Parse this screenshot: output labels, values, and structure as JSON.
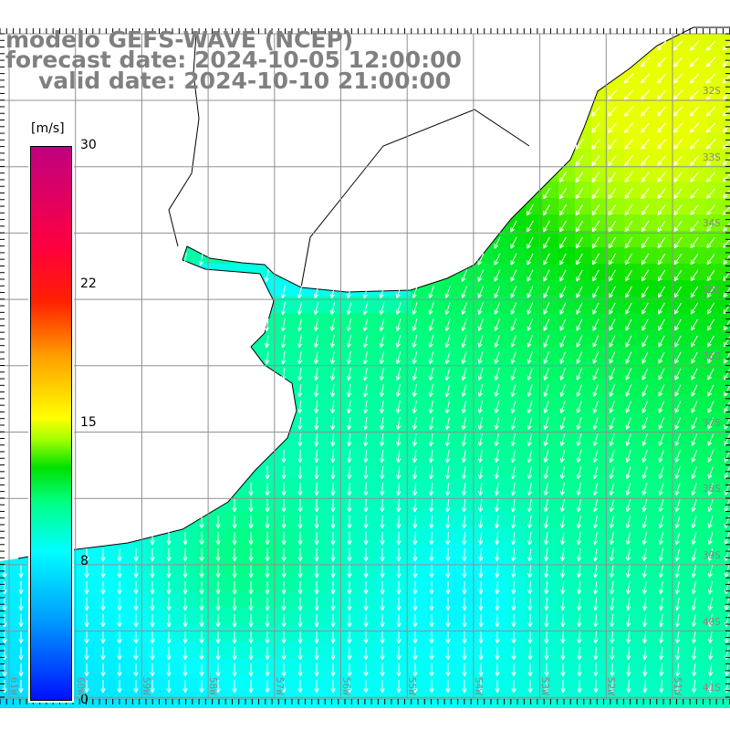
{
  "title": {
    "line1": "modelo GEFS-WAVE (NCEP)",
    "line2": "forecast date: 2024-10-05 12:00:00",
    "line3": "valid date: 2024-10-10 21:00:00"
  },
  "colorbar": {
    "unit": "[m/s]",
    "ticks": [
      "30",
      "22",
      "15",
      "8",
      "0"
    ]
  },
  "lat_labels": [
    "32S",
    "33S",
    "34S",
    "35S",
    "36S",
    "37S",
    "38S",
    "39S",
    "40S",
    "41S"
  ],
  "lon_labels": [
    "61W",
    "60W",
    "59W",
    "58W",
    "57W",
    "56W",
    "55W",
    "54W",
    "53W",
    "52W",
    "51W"
  ],
  "colors": {
    "land": "#ffffff",
    "grid": "#909090",
    "coast": "#000000",
    "arrow": "#ffffff",
    "label": "#808080"
  }
}
